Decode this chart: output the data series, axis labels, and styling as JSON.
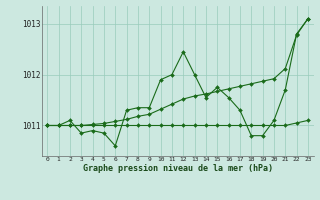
{
  "bg_color": "#cce8e0",
  "grid_color": "#99ccbb",
  "line_color": "#1a6b1a",
  "s1": [
    1011.0,
    1011.0,
    1011.1,
    1010.85,
    1010.9,
    1010.85,
    1010.6,
    1011.3,
    1011.35,
    1011.35,
    1011.9,
    1012.0,
    1012.45,
    1012.0,
    1011.55,
    1011.75,
    1011.55,
    1011.3,
    1010.8,
    1010.8,
    1011.1,
    1011.7,
    1012.8,
    1013.1
  ],
  "s2": [
    1011.0,
    1011.0,
    1011.0,
    1011.0,
    1011.02,
    1011.04,
    1011.08,
    1011.12,
    1011.18,
    1011.22,
    1011.32,
    1011.42,
    1011.52,
    1011.58,
    1011.62,
    1011.67,
    1011.72,
    1011.77,
    1011.82,
    1011.87,
    1011.92,
    1012.12,
    1012.78,
    1013.1
  ],
  "s3": [
    1011.0,
    1011.0,
    1011.0,
    1011.0,
    1011.0,
    1011.0,
    1011.0,
    1011.0,
    1011.0,
    1011.0,
    1011.0,
    1011.0,
    1011.0,
    1011.0,
    1011.0,
    1011.0,
    1011.0,
    1011.0,
    1011.0,
    1011.0,
    1011.0,
    1011.0,
    1011.05,
    1011.1
  ],
  "ylim": [
    1010.4,
    1013.35
  ],
  "yticks": [
    1011,
    1012,
    1013
  ],
  "xticks": [
    0,
    1,
    2,
    3,
    4,
    5,
    6,
    7,
    8,
    9,
    10,
    11,
    12,
    13,
    14,
    15,
    16,
    17,
    18,
    19,
    20,
    21,
    22,
    23
  ],
  "xlabel": "Graphe pression niveau de la mer (hPa)"
}
